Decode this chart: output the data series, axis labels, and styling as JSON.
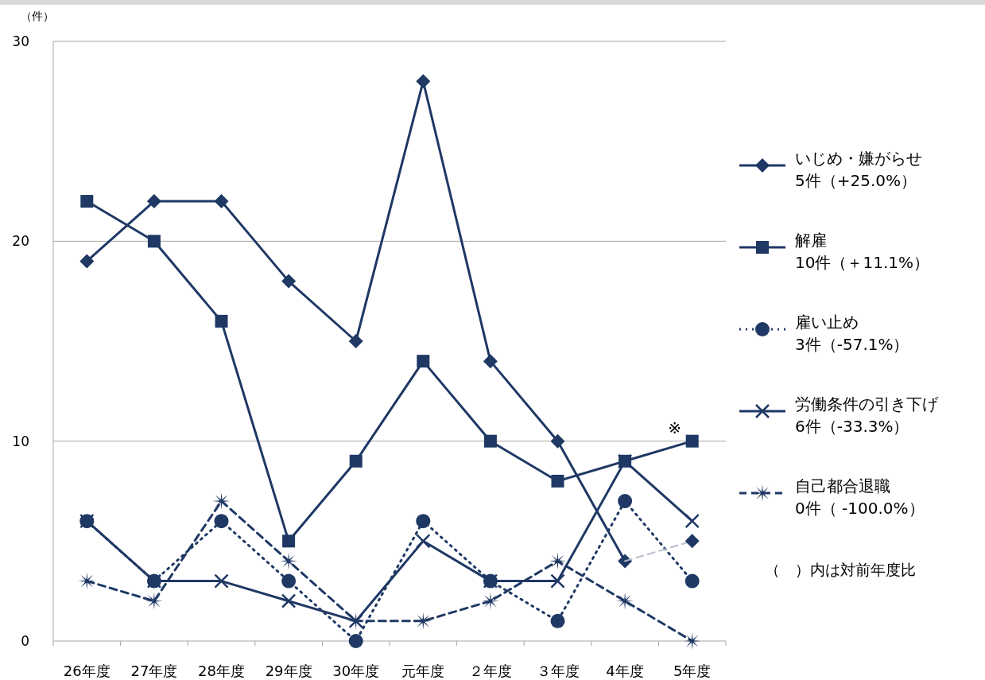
{
  "chart_data": {
    "type": "line",
    "ylabel": "（件）",
    "categories": [
      "26年度",
      "27年度",
      "28年度",
      "29年度",
      "30年度",
      "元年度",
      "２年度",
      "３年度",
      "4年度",
      "5年度"
    ],
    "ylim": [
      0,
      30
    ],
    "yticks": [
      0,
      10,
      20,
      30
    ],
    "grid": "y",
    "legend": "right",
    "series": [
      {
        "name": "いじめ・嫌がらせ\n5件（+25.0%）",
        "color": "#1f3864",
        "marker": "diamond",
        "line_style": "solid",
        "values": [
          19,
          22,
          22,
          18,
          15,
          28,
          14,
          10,
          4,
          null
        ]
      },
      {
        "name": "解雇\n10件（＋11.1%）",
        "color": "#1f3864",
        "marker": "square",
        "line_style": "solid",
        "values": [
          22,
          20,
          16,
          5,
          9,
          14,
          10,
          8,
          9,
          10
        ]
      },
      {
        "name": "雇い止め\n3件（-57.1%）",
        "color": "#1f3864",
        "marker": "circle",
        "line_style": "dotted",
        "values": [
          6,
          3,
          6,
          3,
          0,
          6,
          3,
          1,
          7,
          3
        ]
      },
      {
        "name": "労働条件の引き下げ\n6件（-33.3%）",
        "color": "#1f3864",
        "marker": "cross",
        "line_style": "solid",
        "values": [
          6,
          3,
          3,
          2,
          1,
          5,
          3,
          3,
          9,
          6
        ]
      },
      {
        "name": "自己都合退職\n0件（ -100.0%）",
        "color": "#1f3864",
        "marker": "star",
        "line_style": "dashed",
        "values": [
          3,
          2,
          7,
          4,
          1,
          1,
          2,
          4,
          2,
          0
        ]
      },
      {
        "color": "#b4bccb",
        "marker": "none",
        "line_style": "dashed",
        "values": [
          null,
          null,
          null,
          null,
          null,
          null,
          null,
          null,
          4,
          5
        ]
      },
      {
        "color": "#1f3864",
        "marker": "diamond",
        "line_style": "none",
        "values": [
          null,
          null,
          null,
          null,
          null,
          null,
          null,
          null,
          null,
          5
        ]
      }
    ],
    "annotations": [
      {
        "text": "※",
        "x": "5年度",
        "y": 10
      },
      "（　）内は対前年度比"
    ]
  }
}
